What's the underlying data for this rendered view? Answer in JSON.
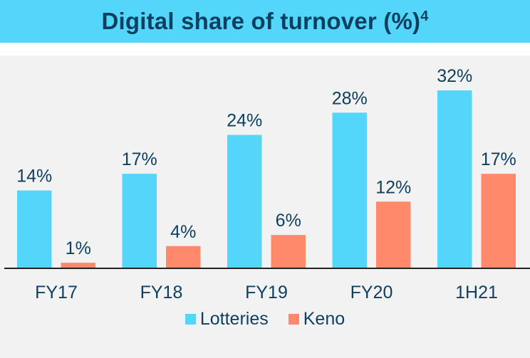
{
  "title": {
    "text": "Digital share of turnover (%)",
    "superscript": "4"
  },
  "colors": {
    "title_bg": "#54d6fb",
    "title_text": "#0d3f5e",
    "panel_bg": "#f2f2f2",
    "text": "#0d3f5e",
    "axis": "#222222"
  },
  "chart_data": {
    "type": "bar",
    "categories": [
      "FY17",
      "FY18",
      "FY19",
      "FY20",
      "1H21"
    ],
    "series": [
      {
        "name": "Lotteries",
        "color": "#54d6fb",
        "values": [
          14,
          17,
          24,
          28,
          32
        ],
        "labels": [
          "14%",
          "17%",
          "24%",
          "28%",
          "32%"
        ]
      },
      {
        "name": "Keno",
        "color": "#ff8a6b",
        "values": [
          1,
          4,
          6,
          12,
          17
        ],
        "labels": [
          "1%",
          "4%",
          "6%",
          "12%",
          "17%"
        ]
      }
    ],
    "ylim": [
      0,
      32
    ],
    "grid": false,
    "legend_position": "bottom"
  }
}
